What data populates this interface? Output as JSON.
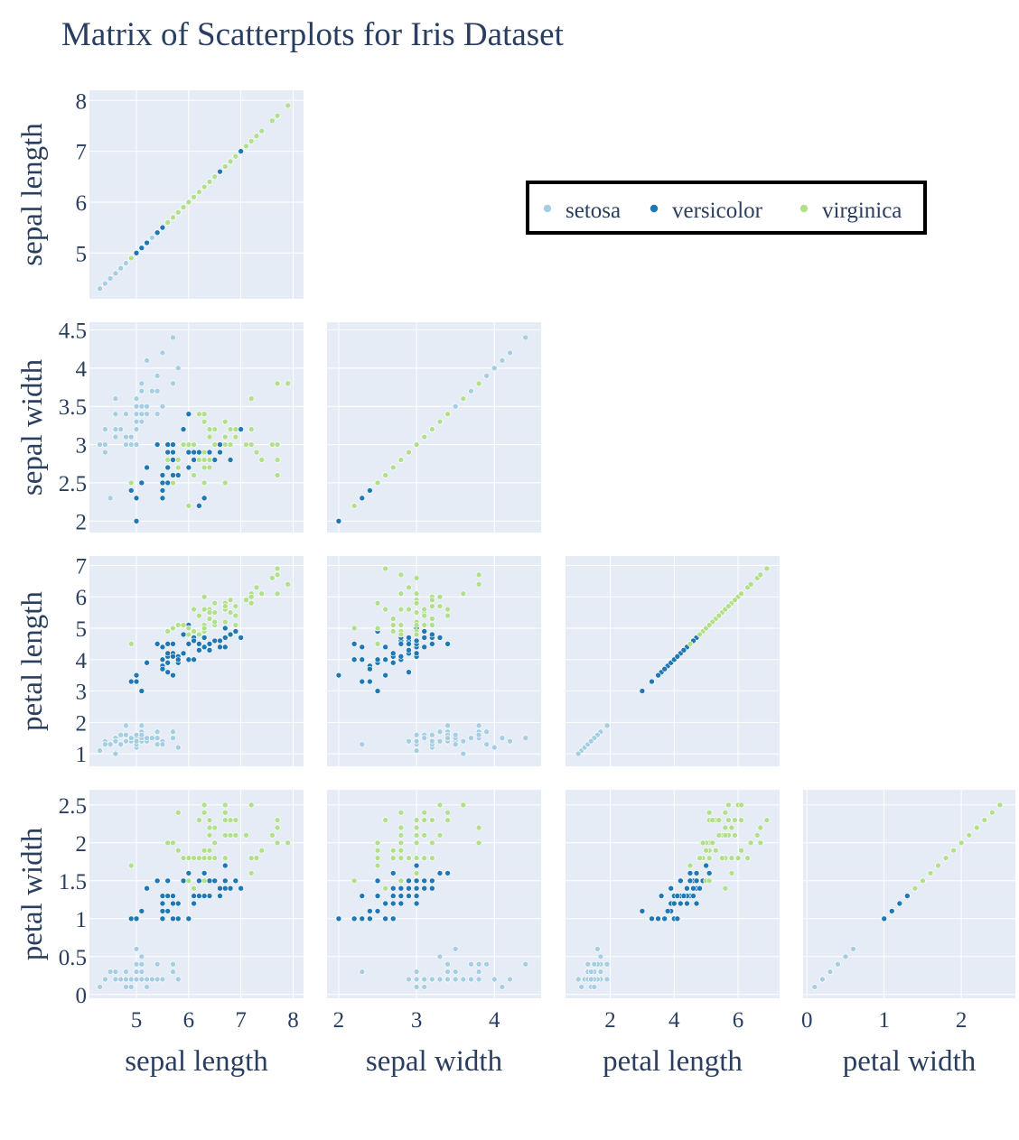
{
  "colors": {
    "setosa": "#a6cee3",
    "versicolor": "#1f78b4",
    "virginica": "#b2df8a",
    "plot_bg": "#e5ecf6",
    "grid": "#ffffff",
    "text": "#2a3f5f",
    "legend_border": "#000000"
  },
  "chart_data": {
    "type": "scatter",
    "title": "Matrix of Scatterplots for Iris Dataset",
    "dimensions": [
      "sepal length",
      "sepal width",
      "petal length",
      "petal width"
    ],
    "layout": "lower-triangle scatter matrix",
    "legend_position": "top-right",
    "grid": true,
    "axes": {
      "sepal length": {
        "range": [
          4.1,
          8.2
        ],
        "ticks": [
          5,
          6,
          7,
          8
        ],
        "tick_labels": [
          "5",
          "6",
          "7",
          "8"
        ]
      },
      "sepal width": {
        "range": [
          1.85,
          4.6
        ],
        "ticks": [
          2,
          2.5,
          3,
          3.5,
          4,
          4.5
        ],
        "tick_labels": [
          "2",
          "2.5",
          "3",
          "3.5",
          "4",
          "4.5"
        ]
      },
      "petal length": {
        "range": [
          0.6,
          7.3
        ],
        "ticks": [
          1,
          2,
          3,
          4,
          5,
          6,
          7
        ],
        "tick_labels": [
          "1",
          "2",
          "3",
          "4",
          "5",
          "6",
          "7"
        ]
      },
      "petal width": {
        "range": [
          -0.05,
          2.7
        ],
        "ticks": [
          0,
          0.5,
          1,
          1.5,
          2,
          2.5
        ],
        "tick_labels": [
          "0",
          "0.5",
          "1",
          "1.5",
          "2",
          "2.5"
        ]
      }
    },
    "x_axis_ticks": {
      "sepal length": {
        "ticks": [
          5,
          6,
          7,
          8
        ],
        "tick_labels": [
          "5",
          "6",
          "7",
          "8"
        ]
      },
      "sepal width": {
        "ticks": [
          2,
          3,
          4
        ],
        "tick_labels": [
          "2",
          "3",
          "4"
        ]
      },
      "petal length": {
        "ticks": [
          2,
          4,
          6
        ],
        "tick_labels": [
          "2",
          "4",
          "6"
        ]
      },
      "petal width": {
        "ticks": [
          0,
          1,
          2
        ],
        "tick_labels": [
          "0",
          "1",
          "2"
        ]
      }
    },
    "series": [
      {
        "name": "setosa",
        "values": [
          [
            5.1,
            3.5,
            1.4,
            0.2
          ],
          [
            4.9,
            3.0,
            1.4,
            0.2
          ],
          [
            4.7,
            3.2,
            1.3,
            0.2
          ],
          [
            4.6,
            3.1,
            1.5,
            0.2
          ],
          [
            5.0,
            3.6,
            1.4,
            0.2
          ],
          [
            5.4,
            3.9,
            1.7,
            0.4
          ],
          [
            4.6,
            3.4,
            1.4,
            0.3
          ],
          [
            5.0,
            3.4,
            1.5,
            0.2
          ],
          [
            4.4,
            2.9,
            1.4,
            0.2
          ],
          [
            4.9,
            3.1,
            1.5,
            0.1
          ],
          [
            5.4,
            3.7,
            1.5,
            0.2
          ],
          [
            4.8,
            3.4,
            1.6,
            0.2
          ],
          [
            4.8,
            3.0,
            1.4,
            0.1
          ],
          [
            4.3,
            3.0,
            1.1,
            0.1
          ],
          [
            5.8,
            4.0,
            1.2,
            0.2
          ],
          [
            5.7,
            4.4,
            1.5,
            0.4
          ],
          [
            5.4,
            3.9,
            1.3,
            0.4
          ],
          [
            5.1,
            3.5,
            1.4,
            0.3
          ],
          [
            5.7,
            3.8,
            1.7,
            0.3
          ],
          [
            5.1,
            3.8,
            1.5,
            0.3
          ],
          [
            5.4,
            3.4,
            1.7,
            0.2
          ],
          [
            5.1,
            3.7,
            1.5,
            0.4
          ],
          [
            4.6,
            3.6,
            1.0,
            0.2
          ],
          [
            5.1,
            3.3,
            1.7,
            0.5
          ],
          [
            4.8,
            3.4,
            1.9,
            0.2
          ],
          [
            5.0,
            3.0,
            1.6,
            0.2
          ],
          [
            5.0,
            3.4,
            1.6,
            0.4
          ],
          [
            5.2,
            3.5,
            1.5,
            0.2
          ],
          [
            5.2,
            3.4,
            1.4,
            0.2
          ],
          [
            4.7,
            3.2,
            1.6,
            0.2
          ],
          [
            4.8,
            3.1,
            1.6,
            0.2
          ],
          [
            5.4,
            3.4,
            1.5,
            0.4
          ],
          [
            5.2,
            4.1,
            1.5,
            0.1
          ],
          [
            5.5,
            4.2,
            1.4,
            0.2
          ],
          [
            4.9,
            3.1,
            1.5,
            0.1
          ],
          [
            5.0,
            3.2,
            1.2,
            0.2
          ],
          [
            5.5,
            3.5,
            1.3,
            0.2
          ],
          [
            4.9,
            3.1,
            1.5,
            0.1
          ],
          [
            4.4,
            3.0,
            1.3,
            0.2
          ],
          [
            5.1,
            3.4,
            1.5,
            0.2
          ],
          [
            5.0,
            3.5,
            1.3,
            0.3
          ],
          [
            4.5,
            2.3,
            1.3,
            0.3
          ],
          [
            4.4,
            3.2,
            1.3,
            0.2
          ],
          [
            5.0,
            3.5,
            1.6,
            0.6
          ],
          [
            5.1,
            3.8,
            1.9,
            0.4
          ],
          [
            4.8,
            3.0,
            1.4,
            0.3
          ],
          [
            5.1,
            3.8,
            1.6,
            0.2
          ],
          [
            4.6,
            3.2,
            1.4,
            0.2
          ],
          [
            5.3,
            3.7,
            1.5,
            0.2
          ],
          [
            5.0,
            3.3,
            1.4,
            0.2
          ]
        ]
      },
      {
        "name": "versicolor",
        "values": [
          [
            7.0,
            3.2,
            4.7,
            1.4
          ],
          [
            6.4,
            3.2,
            4.5,
            1.5
          ],
          [
            6.9,
            3.1,
            4.9,
            1.5
          ],
          [
            5.5,
            2.3,
            4.0,
            1.3
          ],
          [
            6.5,
            2.8,
            4.6,
            1.5
          ],
          [
            5.7,
            2.8,
            4.5,
            1.3
          ],
          [
            6.3,
            3.3,
            4.7,
            1.6
          ],
          [
            4.9,
            2.4,
            3.3,
            1.0
          ],
          [
            6.6,
            2.9,
            4.6,
            1.3
          ],
          [
            5.2,
            2.7,
            3.9,
            1.4
          ],
          [
            5.0,
            2.0,
            3.5,
            1.0
          ],
          [
            5.9,
            3.0,
            4.2,
            1.5
          ],
          [
            6.0,
            2.2,
            4.0,
            1.0
          ],
          [
            6.1,
            2.9,
            4.7,
            1.4
          ],
          [
            5.6,
            2.9,
            3.6,
            1.3
          ],
          [
            6.7,
            3.1,
            4.4,
            1.4
          ],
          [
            5.6,
            3.0,
            4.5,
            1.5
          ],
          [
            5.8,
            2.7,
            4.1,
            1.0
          ],
          [
            6.2,
            2.2,
            4.5,
            1.5
          ],
          [
            5.6,
            2.5,
            3.9,
            1.1
          ],
          [
            5.9,
            3.2,
            4.8,
            1.8
          ],
          [
            6.1,
            2.8,
            4.0,
            1.3
          ],
          [
            6.3,
            2.5,
            4.9,
            1.5
          ],
          [
            6.1,
            2.8,
            4.7,
            1.2
          ],
          [
            6.4,
            2.9,
            4.3,
            1.3
          ],
          [
            6.6,
            3.0,
            4.4,
            1.4
          ],
          [
            6.8,
            2.8,
            4.8,
            1.4
          ],
          [
            6.7,
            3.0,
            5.0,
            1.7
          ],
          [
            6.0,
            2.9,
            4.5,
            1.5
          ],
          [
            5.7,
            2.6,
            3.5,
            1.0
          ],
          [
            5.5,
            2.4,
            3.8,
            1.1
          ],
          [
            5.5,
            2.4,
            3.7,
            1.0
          ],
          [
            5.8,
            2.7,
            3.9,
            1.2
          ],
          [
            6.0,
            2.7,
            5.1,
            1.6
          ],
          [
            5.4,
            3.0,
            4.5,
            1.5
          ],
          [
            6.0,
            3.4,
            4.5,
            1.6
          ],
          [
            6.7,
            3.1,
            4.7,
            1.5
          ],
          [
            6.3,
            2.3,
            4.4,
            1.3
          ],
          [
            5.6,
            3.0,
            4.1,
            1.3
          ],
          [
            5.5,
            2.5,
            4.0,
            1.3
          ],
          [
            5.5,
            2.6,
            4.4,
            1.2
          ],
          [
            6.1,
            3.0,
            4.6,
            1.4
          ],
          [
            5.8,
            2.6,
            4.0,
            1.2
          ],
          [
            5.0,
            2.3,
            3.3,
            1.0
          ],
          [
            5.6,
            2.7,
            4.2,
            1.3
          ],
          [
            5.7,
            3.0,
            4.2,
            1.2
          ],
          [
            5.7,
            2.9,
            4.2,
            1.3
          ],
          [
            6.2,
            2.9,
            4.3,
            1.3
          ],
          [
            5.1,
            2.5,
            3.0,
            1.1
          ],
          [
            5.7,
            2.8,
            4.1,
            1.3
          ]
        ]
      },
      {
        "name": "virginica",
        "values": [
          [
            6.3,
            3.3,
            6.0,
            2.5
          ],
          [
            5.8,
            2.7,
            5.1,
            1.9
          ],
          [
            7.1,
            3.0,
            5.9,
            2.1
          ],
          [
            6.3,
            2.9,
            5.6,
            1.8
          ],
          [
            6.5,
            3.0,
            5.8,
            2.2
          ],
          [
            7.6,
            3.0,
            6.6,
            2.1
          ],
          [
            4.9,
            2.5,
            4.5,
            1.7
          ],
          [
            7.3,
            2.9,
            6.3,
            1.8
          ],
          [
            6.7,
            2.5,
            5.8,
            1.8
          ],
          [
            7.2,
            3.6,
            6.1,
            2.5
          ],
          [
            6.5,
            3.2,
            5.1,
            2.0
          ],
          [
            6.4,
            2.7,
            5.3,
            1.9
          ],
          [
            6.8,
            3.0,
            5.5,
            2.1
          ],
          [
            5.7,
            2.5,
            5.0,
            2.0
          ],
          [
            5.8,
            2.8,
            5.1,
            2.4
          ],
          [
            6.4,
            3.2,
            5.3,
            2.3
          ],
          [
            6.5,
            3.0,
            5.5,
            1.8
          ],
          [
            7.7,
            3.8,
            6.7,
            2.2
          ],
          [
            7.7,
            2.6,
            6.9,
            2.3
          ],
          [
            6.0,
            2.2,
            5.0,
            1.5
          ],
          [
            6.9,
            3.2,
            5.7,
            2.3
          ],
          [
            5.6,
            2.8,
            4.9,
            2.0
          ],
          [
            7.7,
            2.8,
            6.7,
            2.0
          ],
          [
            6.3,
            2.7,
            4.9,
            1.8
          ],
          [
            6.7,
            3.3,
            5.7,
            2.1
          ],
          [
            7.2,
            3.2,
            6.0,
            1.8
          ],
          [
            6.2,
            2.8,
            4.8,
            1.8
          ],
          [
            6.1,
            3.0,
            4.9,
            1.8
          ],
          [
            6.4,
            2.8,
            5.6,
            2.1
          ],
          [
            7.2,
            3.0,
            5.8,
            1.6
          ],
          [
            7.4,
            2.8,
            6.1,
            1.9
          ],
          [
            7.9,
            3.8,
            6.4,
            2.0
          ],
          [
            6.4,
            2.8,
            5.6,
            2.2
          ],
          [
            6.3,
            2.8,
            5.1,
            1.5
          ],
          [
            6.1,
            2.6,
            5.6,
            1.4
          ],
          [
            7.7,
            3.0,
            6.1,
            2.3
          ],
          [
            6.3,
            3.4,
            5.6,
            2.4
          ],
          [
            6.4,
            3.1,
            5.5,
            1.8
          ],
          [
            6.0,
            3.0,
            4.8,
            1.8
          ],
          [
            6.9,
            3.1,
            5.4,
            2.1
          ],
          [
            6.7,
            3.1,
            5.6,
            2.4
          ],
          [
            6.9,
            3.1,
            5.1,
            2.3
          ],
          [
            5.8,
            2.7,
            5.1,
            1.9
          ],
          [
            6.8,
            3.2,
            5.9,
            2.3
          ],
          [
            6.7,
            3.3,
            5.7,
            2.5
          ],
          [
            6.7,
            3.0,
            5.2,
            2.3
          ],
          [
            6.3,
            2.5,
            5.0,
            1.9
          ],
          [
            6.5,
            3.0,
            5.2,
            2.0
          ],
          [
            6.2,
            3.4,
            5.4,
            2.3
          ],
          [
            5.9,
            3.0,
            5.1,
            1.8
          ]
        ]
      }
    ]
  }
}
